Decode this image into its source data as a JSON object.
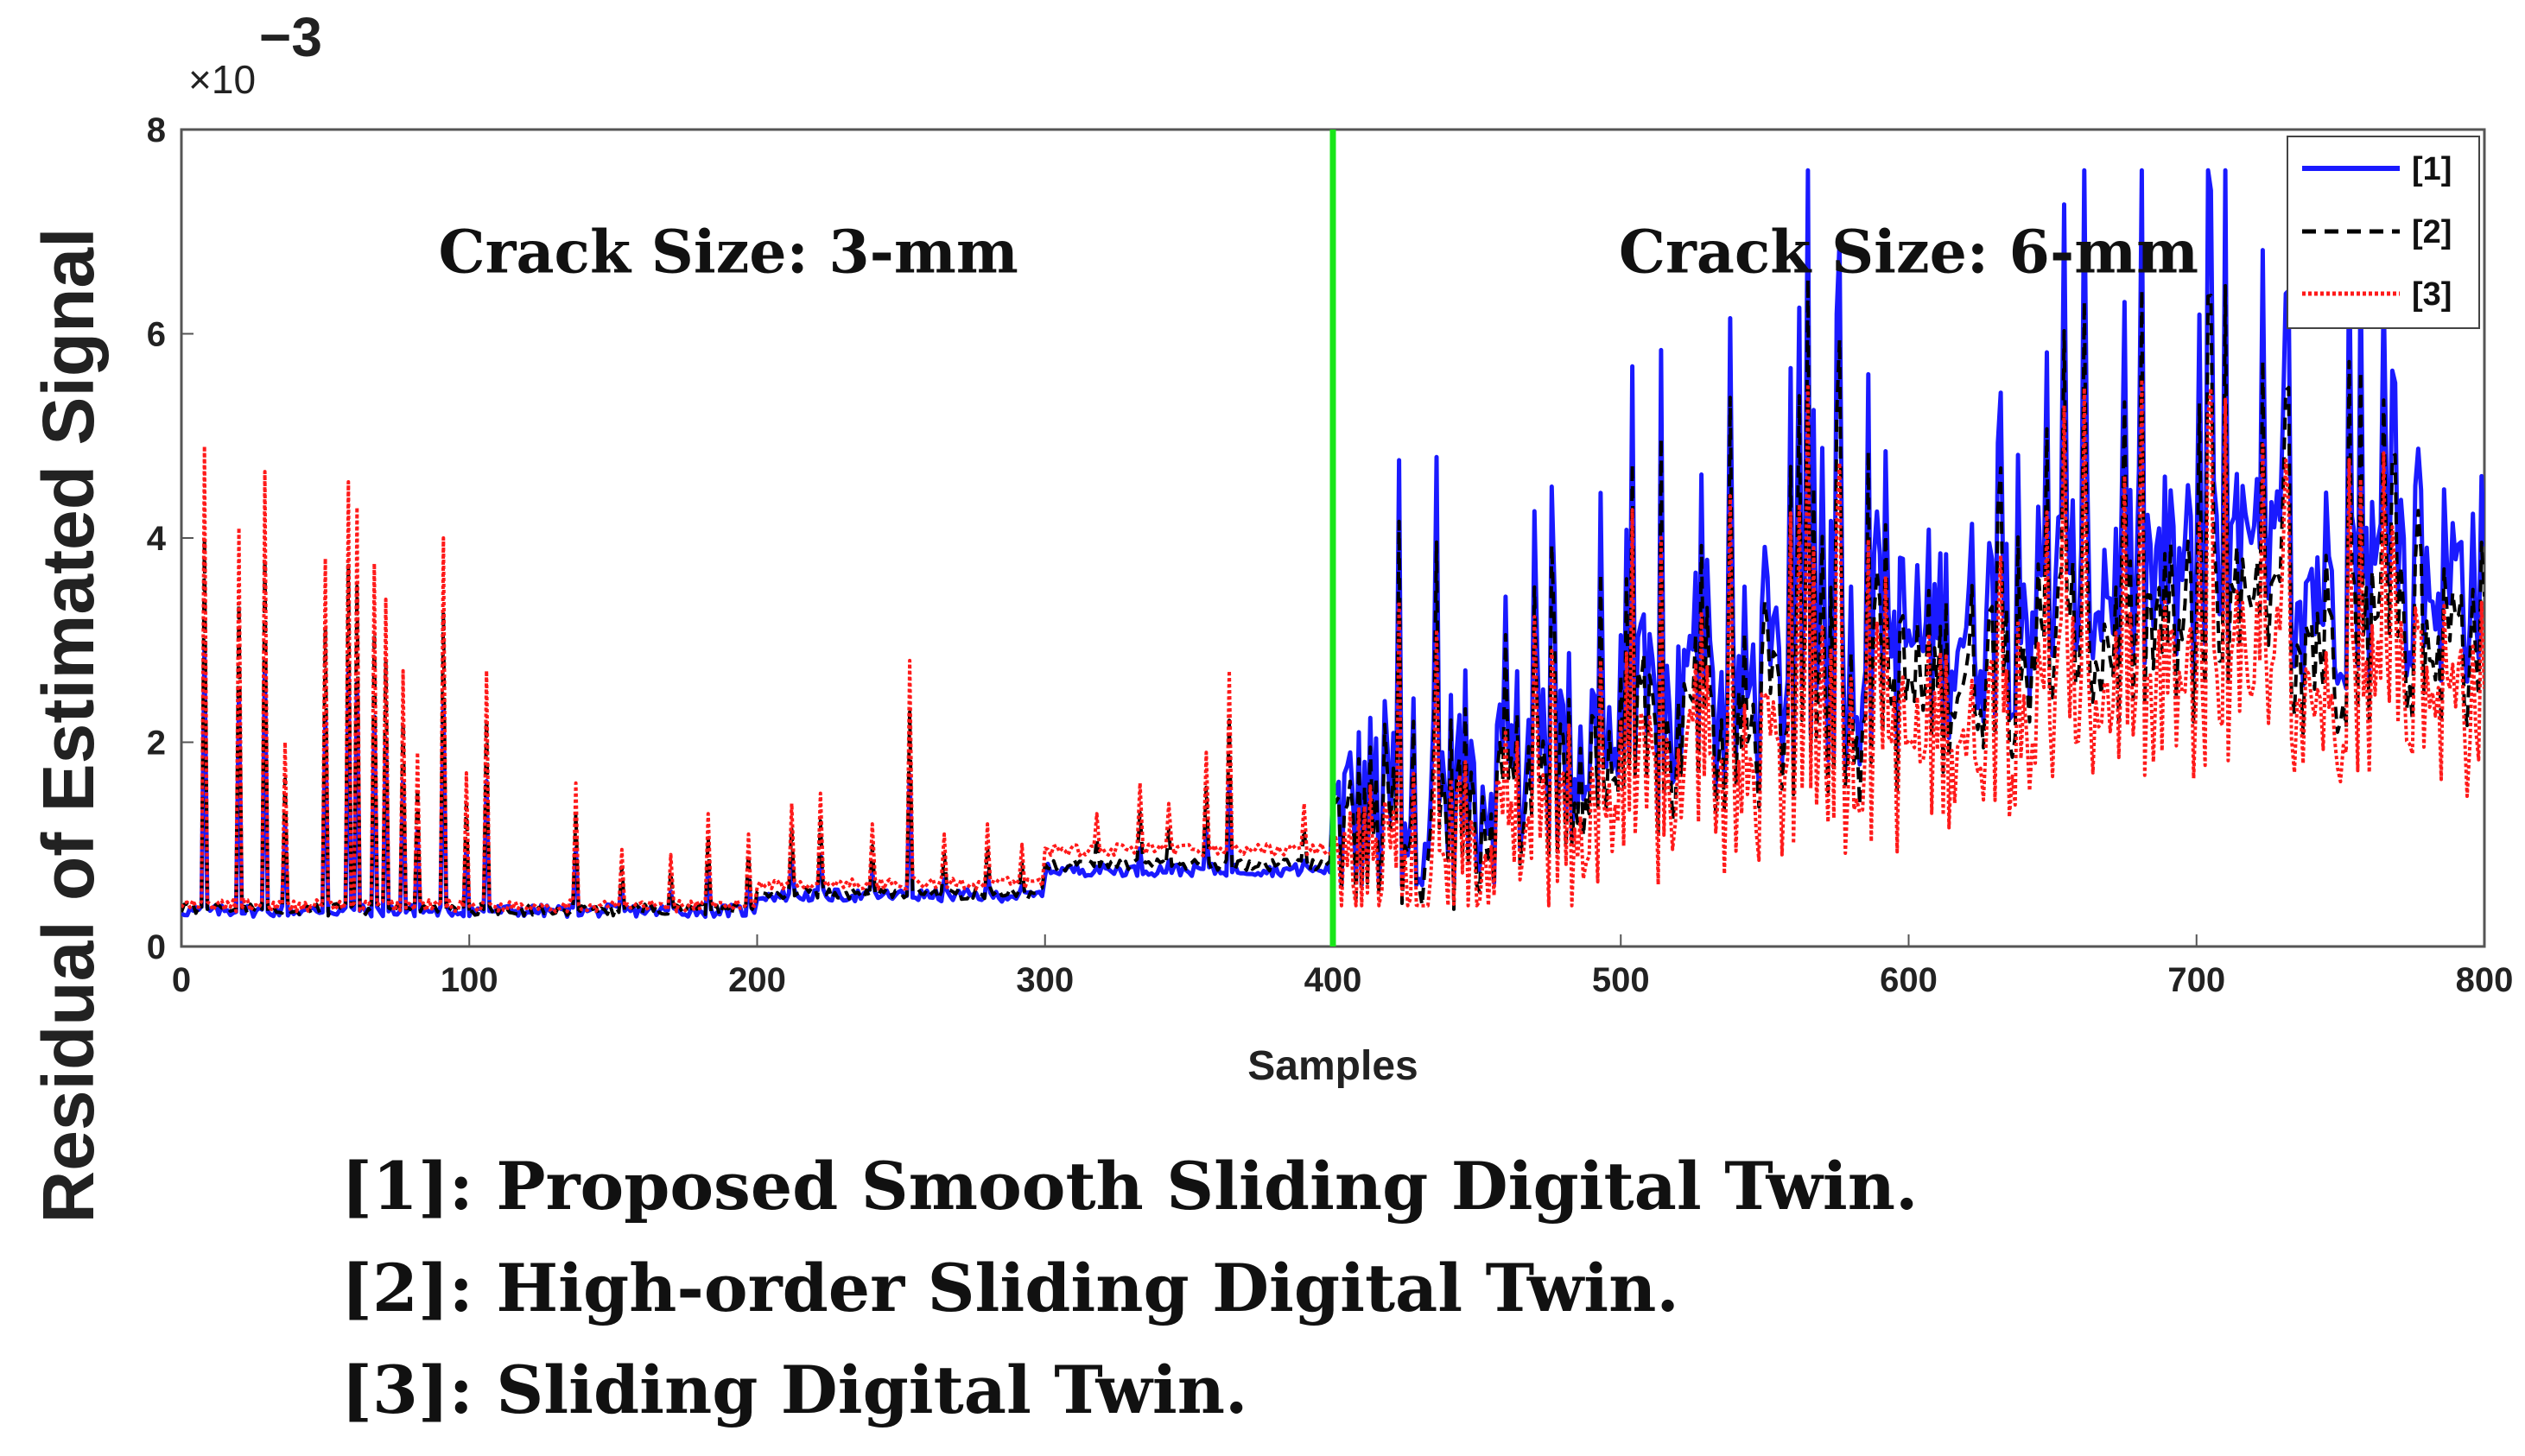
{
  "chart_data": {
    "type": "line",
    "xlabel": "Samples",
    "ylabel": "Residual of Estimated Signal",
    "y_multiplier": {
      "base": "×10",
      "exponent": "−3"
    },
    "xlim": [
      0,
      800
    ],
    "ylim": [
      0,
      8
    ],
    "xticks": [
      "0",
      "100",
      "200",
      "300",
      "400",
      "500",
      "600",
      "700",
      "800"
    ],
    "yticks": [
      "0",
      "2",
      "4",
      "6",
      "8"
    ],
    "divider_x": 400,
    "regions": [
      {
        "label": "Crack Size: 3-mm",
        "x_center": 190,
        "y": 6.6
      },
      {
        "label": "Crack Size: 6-mm",
        "x_center": 600,
        "y": 6.6
      }
    ],
    "legend_position": "top-right",
    "series": [
      {
        "key": "s1",
        "name": "[1]",
        "color": "#1a1aff",
        "style": "solid"
      },
      {
        "key": "s2",
        "name": "[2]",
        "color": "#000000",
        "style": "dashed"
      },
      {
        "key": "s3",
        "name": "[3]",
        "color": "#ff1a1a",
        "style": "dotted"
      }
    ],
    "segments": [
      {
        "x0": 0,
        "x1": 200,
        "s1": 0.35,
        "s2": 0.36,
        "s3": 0.4
      },
      {
        "x0": 200,
        "x1": 300,
        "s1": 0.5,
        "s2": 0.52,
        "s3": 0.62
      },
      {
        "x0": 300,
        "x1": 400,
        "s1": 0.75,
        "s2": 0.8,
        "s3": 0.95
      }
    ],
    "peaks": [
      {
        "x": 8,
        "v": 4.9
      },
      {
        "x": 20,
        "v": 4.1
      },
      {
        "x": 29,
        "v": 4.65
      },
      {
        "x": 36,
        "v": 2.0
      },
      {
        "x": 50,
        "v": 3.8
      },
      {
        "x": 58,
        "v": 4.55
      },
      {
        "x": 61,
        "v": 4.3
      },
      {
        "x": 67,
        "v": 3.75
      },
      {
        "x": 71,
        "v": 3.4
      },
      {
        "x": 77,
        "v": 2.7
      },
      {
        "x": 82,
        "v": 1.9
      },
      {
        "x": 91,
        "v": 4.0
      },
      {
        "x": 99,
        "v": 1.7
      },
      {
        "x": 106,
        "v": 2.7
      },
      {
        "x": 137,
        "v": 1.6
      },
      {
        "x": 153,
        "v": 0.95
      },
      {
        "x": 170,
        "v": 0.9
      },
      {
        "x": 183,
        "v": 1.3
      },
      {
        "x": 197,
        "v": 1.1
      },
      {
        "x": 212,
        "v": 1.4
      },
      {
        "x": 222,
        "v": 1.5
      },
      {
        "x": 240,
        "v": 1.2
      },
      {
        "x": 253,
        "v": 2.8
      },
      {
        "x": 265,
        "v": 1.1
      },
      {
        "x": 280,
        "v": 1.2
      },
      {
        "x": 292,
        "v": 1.0
      },
      {
        "x": 318,
        "v": 1.3
      },
      {
        "x": 333,
        "v": 1.6
      },
      {
        "x": 343,
        "v": 1.4
      },
      {
        "x": 356,
        "v": 1.9
      },
      {
        "x": 364,
        "v": 2.7
      },
      {
        "x": 390,
        "v": 1.4
      }
    ],
    "high_region": {
      "x0": 400,
      "x1": 800,
      "s1_peak_max": 7.6,
      "s2_ratio": 0.85,
      "s3_ratio": 0.75,
      "baseline_s1": 1.0,
      "baseline_s3_min": 0.4
    }
  },
  "legend": {
    "items": [
      "[1]",
      "[2]",
      "[3]"
    ]
  },
  "caption": {
    "line1": "[1]: Proposed Smooth Sliding Digital Twin.",
    "line2": "[2]: High-order Sliding Digital Twin.",
    "line3": "[3]: Sliding Digital Twin."
  }
}
